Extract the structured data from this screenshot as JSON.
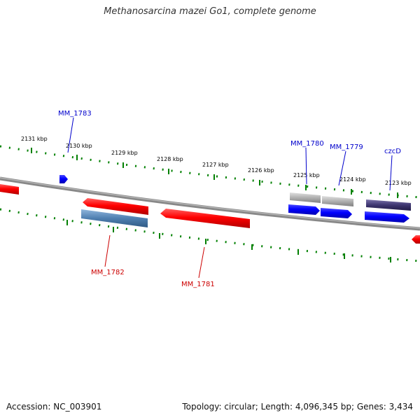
{
  "title": "Methanosarcina mazei Go1, complete genome",
  "footer": {
    "accession": "Accession: NC_003901",
    "summary": "Topology: circular; Length: 4,096,345 bp; Genes: 3,434"
  },
  "ticks": [
    "2131 kbp",
    "2130 kbp",
    "2129 kbp",
    "2128 kbp",
    "2127 kbp",
    "2126 kbp",
    "2125 kbp",
    "2124 kbp",
    "2123 kbp"
  ],
  "labels": {
    "mm1783": "MM_1783",
    "mm1780": "MM_1780",
    "mm1779": "MM_1779",
    "czcD": "czcD",
    "mm1782": "MM_1782",
    "mm1781": "MM_1781"
  },
  "colors": {
    "forward_gene": "#0000ff",
    "reverse_gene": "#ff0000",
    "forward_label": "#0000cc",
    "reverse_label": "#cc0000",
    "backbone": "#888888",
    "tick": "#008000",
    "feature_gray": "#b0b0b0",
    "feature_steelblue": "#4f7fb0",
    "feature_darkslate": "#3d3570"
  }
}
